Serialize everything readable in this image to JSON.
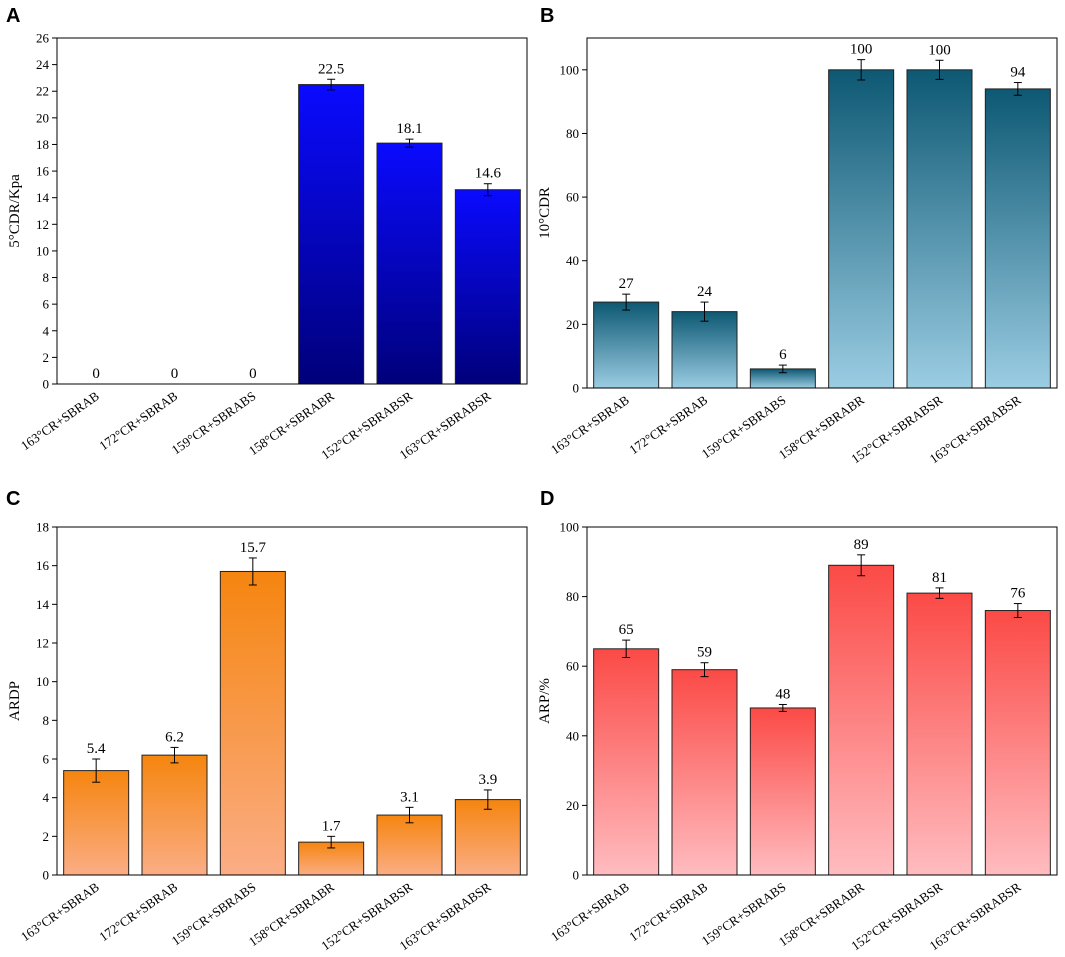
{
  "chart_data": [
    {
      "panel": "A",
      "type": "bar",
      "ylabel": "5°CDR/Kpa",
      "ylim": [
        0,
        26
      ],
      "yticks": [
        0,
        2,
        4,
        6,
        8,
        10,
        12,
        14,
        16,
        18,
        20,
        22,
        24,
        26
      ],
      "categories": [
        "163°CR+SBRAB",
        "172°CR+SBRAB",
        "159°CR+SBRABS",
        "158°CR+SBRABR",
        "152°CR+SBRABSR",
        "163°CR+SBRABSR"
      ],
      "values": [
        0,
        0,
        0,
        22.5,
        18.1,
        14.6
      ],
      "errors": [
        0,
        0,
        0,
        0.4,
        0.3,
        0.45
      ],
      "labels": [
        "0",
        "0",
        "0",
        "22.5",
        "18.1",
        "14.6"
      ],
      "colors": {
        "top": "#0a0aff",
        "bottom": "#00007a"
      }
    },
    {
      "panel": "B",
      "type": "bar",
      "ylabel": "10°CDR",
      "ylim": [
        0,
        110
      ],
      "yticks": [
        0,
        20,
        40,
        60,
        80,
        100
      ],
      "categories": [
        "163°CR+SBRAB",
        "172°CR+SBRAB",
        "159°CR+SBRABS",
        "158°CR+SBRABR",
        "152°CR+SBRABSR",
        "163°CR+SBRABSR"
      ],
      "values": [
        27,
        24,
        6,
        100,
        100,
        94
      ],
      "errors": [
        2.5,
        3,
        1.2,
        3.2,
        3,
        2
      ],
      "labels": [
        "27",
        "24",
        "6",
        "100",
        "100",
        "94"
      ],
      "colors": {
        "top": "#0d5873",
        "bottom": "#9bcde3"
      }
    },
    {
      "panel": "C",
      "type": "bar",
      "ylabel": "ARDP",
      "ylim": [
        0,
        18
      ],
      "yticks": [
        0,
        2,
        4,
        6,
        8,
        10,
        12,
        14,
        16,
        18
      ],
      "categories": [
        "163°CR+SBRAB",
        "172°CR+SBRAB",
        "159°CR+SBRABS",
        "158°CR+SBRABR",
        "152°CR+SBRABSR",
        "163°CR+SBRABSR"
      ],
      "values": [
        5.4,
        6.2,
        15.7,
        1.7,
        3.1,
        3.9
      ],
      "errors": [
        0.6,
        0.4,
        0.7,
        0.3,
        0.4,
        0.5
      ],
      "labels": [
        "5.4",
        "6.2",
        "15.7",
        "1.7",
        "3.1",
        "3.9"
      ],
      "colors": {
        "top": "#f5850f",
        "bottom": "#fbad85"
      }
    },
    {
      "panel": "D",
      "type": "bar",
      "ylabel": "ARP/%",
      "ylim": [
        0,
        100
      ],
      "yticks": [
        0,
        20,
        40,
        60,
        80,
        100
      ],
      "categories": [
        "163°CR+SBRAB",
        "172°CR+SBRAB",
        "159°CR+SBRABS",
        "158°CR+SBRABR",
        "152°CR+SBRABSR",
        "163°CR+SBRABSR"
      ],
      "values": [
        65,
        59,
        48,
        89,
        81,
        76
      ],
      "errors": [
        2.5,
        2,
        1,
        3,
        1.5,
        2
      ],
      "labels": [
        "65",
        "59",
        "48",
        "89",
        "81",
        "76"
      ],
      "colors": {
        "top": "#fb4a46",
        "bottom": "#ffbcc0"
      }
    }
  ]
}
